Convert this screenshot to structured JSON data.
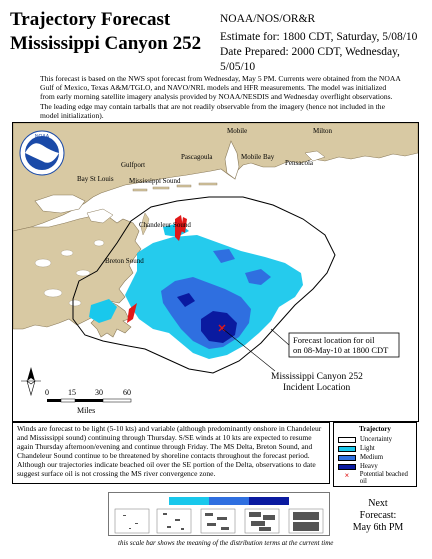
{
  "header": {
    "title_line1": "Trajectory Forecast",
    "title_line2": "Mississippi Canyon 252",
    "agency": "NOAA/NOS/OR&R",
    "estimate": "Estimate for: 1800 CDT, Saturday, 5/08/10",
    "prepared": "Date Prepared: 2000 CDT, Wednesday, 5/05/10"
  },
  "intro_text": "This forecast is based on the NWS spot forecast from Wednesday, May 5 PM. Currents were obtained from the NOAA Gulf of Mexico, Texas A&M/TGLO, and NAVO/NRL models and HFR measurements. The model was initialized from early morning satellite imagery analysis provided by NOAA/NESDIS and Wednesday overflight observations. The leading edge may contain tarballs that are not readily observable from the imagery (hence not included in the model initialization).",
  "map": {
    "logo_text": "NOAA",
    "places": {
      "mobile": "Mobile",
      "milton": "Milton",
      "pascagoula": "Pascagoula",
      "gulfport": "Gulfport",
      "pensacola": "Pensacola",
      "mobile_bay": "Mobile Bay",
      "bay_st_louis": "Bay St Louis",
      "mississippi_sound": "Mississippi Sound",
      "chandeleur_sound": "Chandeleur Sound",
      "breton_sound": "Breton Sound"
    },
    "callout": {
      "line1": "Forecast location for oil",
      "line2": "on 08-May-10 at 1800 CDT"
    },
    "incident": {
      "line1": "Mississippi Canyon 252",
      "line2": "Incident Location"
    },
    "scale_bar": {
      "ticks": [
        "0",
        "15",
        "30",
        "60"
      ],
      "unit": "Miles"
    }
  },
  "winds_text": "Winds are forecast to be light (5-10 kts) and variable (although predominantly onshore in Chandeleur and Mississippi sound) continuing through Thursday. S/SE winds at 10 kts are expected to resume again Thursday afternoon/evening and continue through Friday. The MS Delta, Breton Sound, and Chandeleur Sound continue to be threatened by shoreline contacts throughout the forecast period. Although our trajectories indicate beached oil over the SE portion of the Delta, observations to date suggest surface oil is not crossing the MS river convergence zone.",
  "legend": {
    "title": "Trajectory",
    "items": [
      {
        "label": "Uncertainty",
        "color": "#ffffff"
      },
      {
        "label": "Light",
        "color": "#19c8ec"
      },
      {
        "label": "Medium",
        "color": "#2f6fe0"
      },
      {
        "label": "Heavy",
        "color": "#0a1aa0"
      },
      {
        "label": "Potential beached oil",
        "color": "#e01818"
      }
    ]
  },
  "scale_caption": "this scale bar shows the meaning of the distribution terms at the current time",
  "next_forecast": {
    "line1": "Next",
    "line2": "Forecast:",
    "line3": "May 6th PM"
  },
  "colors": {
    "land": "#d8c9a3",
    "light": "#19c8ec",
    "medium": "#2f6fe0",
    "heavy": "#0a1aa0",
    "beached": "#e01818",
    "noaa_blue": "#1a4aa8"
  }
}
